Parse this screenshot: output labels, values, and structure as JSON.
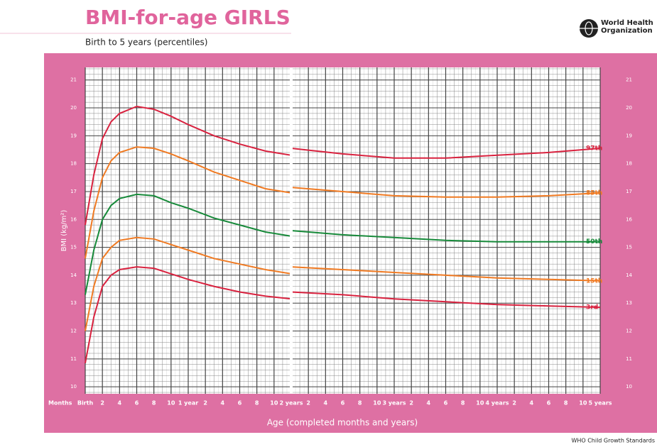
{
  "chart_data": {
    "type": "line",
    "title": "BMI-for-age GIRLS",
    "subtitle": "Birth to 5 years (percentiles)",
    "organization": "World Health Organization",
    "footer": "WHO Child Growth Standards",
    "x_label": "Age (completed months and years)",
    "x_row_label": "Months",
    "y_label": "BMI (kg/m²)",
    "xlim": [
      0,
      60
    ],
    "ylim": [
      9.75,
      21.45
    ],
    "yticks": [
      10,
      11,
      12,
      13,
      14,
      15,
      16,
      17,
      18,
      19,
      20,
      21
    ],
    "xticks": [
      {
        "value": 0,
        "label": "Birth"
      },
      2,
      4,
      6,
      8,
      10,
      {
        "value": 12,
        "label": "1 year"
      },
      {
        "value": 14,
        "label": "2"
      },
      {
        "value": 16,
        "label": "4"
      },
      {
        "value": 18,
        "label": "6"
      },
      {
        "value": 20,
        "label": "8"
      },
      {
        "value": 22,
        "label": "10"
      },
      {
        "value": 24,
        "label": "2 years"
      },
      {
        "value": 26,
        "label": "2"
      },
      {
        "value": 28,
        "label": "4"
      },
      {
        "value": 30,
        "label": "6"
      },
      {
        "value": 32,
        "label": "8"
      },
      {
        "value": 34,
        "label": "10"
      },
      {
        "value": 36,
        "label": "3 years"
      },
      {
        "value": 38,
        "label": "2"
      },
      {
        "value": 40,
        "label": "4"
      },
      {
        "value": 42,
        "label": "6"
      },
      {
        "value": 44,
        "label": "8"
      },
      {
        "value": 46,
        "label": "10"
      },
      {
        "value": 48,
        "label": "4 years"
      },
      {
        "value": 50,
        "label": "2"
      },
      {
        "value": 52,
        "label": "4"
      },
      {
        "value": 54,
        "label": "6"
      },
      {
        "value": 56,
        "label": "8"
      },
      {
        "value": 58,
        "label": "10"
      },
      {
        "value": 60,
        "label": "5 years"
      }
    ],
    "grid": true,
    "x": [
      0,
      1,
      2,
      3,
      4,
      6,
      8,
      10,
      12,
      15,
      18,
      21,
      24,
      null,
      24,
      30,
      36,
      42,
      48,
      54,
      60
    ],
    "series": [
      {
        "name": "97th",
        "color": "#d9223f",
        "values": [
          15.8,
          17.6,
          18.9,
          19.5,
          19.8,
          20.05,
          19.95,
          19.7,
          19.4,
          19.0,
          18.7,
          18.45,
          18.3,
          null,
          18.55,
          18.35,
          18.2,
          18.2,
          18.3,
          18.4,
          18.55
        ]
      },
      {
        "name": "85th",
        "color": "#f07a22",
        "values": [
          14.6,
          16.3,
          17.5,
          18.1,
          18.4,
          18.6,
          18.55,
          18.35,
          18.1,
          17.7,
          17.4,
          17.1,
          16.95,
          null,
          17.15,
          17.0,
          16.85,
          16.8,
          16.8,
          16.85,
          16.95
        ]
      },
      {
        "name": "50th",
        "color": "#178a3a",
        "values": [
          13.3,
          14.9,
          16.0,
          16.5,
          16.75,
          16.9,
          16.85,
          16.6,
          16.4,
          16.05,
          15.8,
          15.55,
          15.4,
          null,
          15.6,
          15.45,
          15.35,
          15.25,
          15.2,
          15.2,
          15.2
        ]
      },
      {
        "name": "15th",
        "color": "#f07a22",
        "values": [
          12.0,
          13.6,
          14.6,
          15.0,
          15.25,
          15.35,
          15.3,
          15.1,
          14.9,
          14.6,
          14.4,
          14.2,
          14.05,
          null,
          14.3,
          14.2,
          14.1,
          14.0,
          13.9,
          13.85,
          13.8
        ]
      },
      {
        "name": "3rd",
        "color": "#d9223f",
        "values": [
          10.85,
          12.5,
          13.6,
          14.0,
          14.2,
          14.3,
          14.25,
          14.05,
          13.85,
          13.6,
          13.4,
          13.25,
          13.15,
          null,
          13.4,
          13.3,
          13.15,
          13.05,
          12.95,
          12.9,
          12.85
        ]
      }
    ]
  }
}
